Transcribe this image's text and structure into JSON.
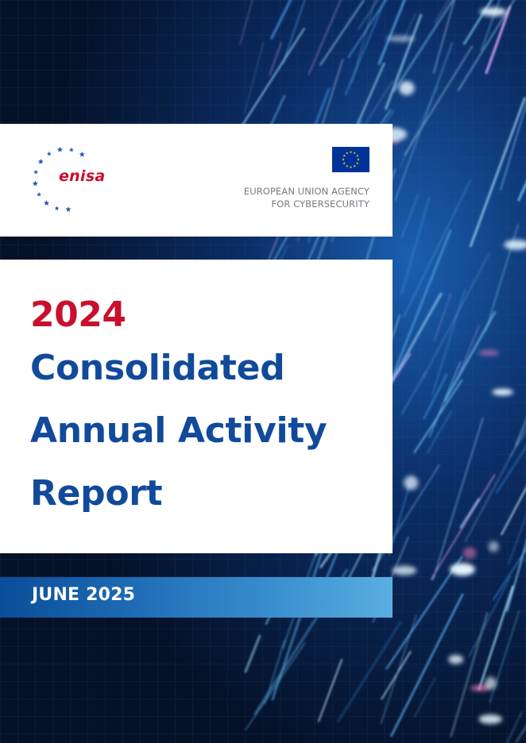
{
  "brand": {
    "logo_word": "enisa",
    "logo_icon": "enisa-star-arc-icon",
    "flag_icon": "eu-flag-icon",
    "agency_line1": "EUROPEAN UNION AGENCY",
    "agency_line2": "FOR CYBERSECURITY"
  },
  "title": {
    "year": "2024",
    "line1": "Consolidated",
    "line2": "Annual Activity",
    "line3": "Report"
  },
  "date": "JUNE 2025",
  "colors": {
    "accent_red": "#c8102e",
    "title_blue": "#114a9a",
    "eu_blue": "#003399",
    "eu_yellow": "#ffcc00",
    "background_navy": "#071735"
  }
}
